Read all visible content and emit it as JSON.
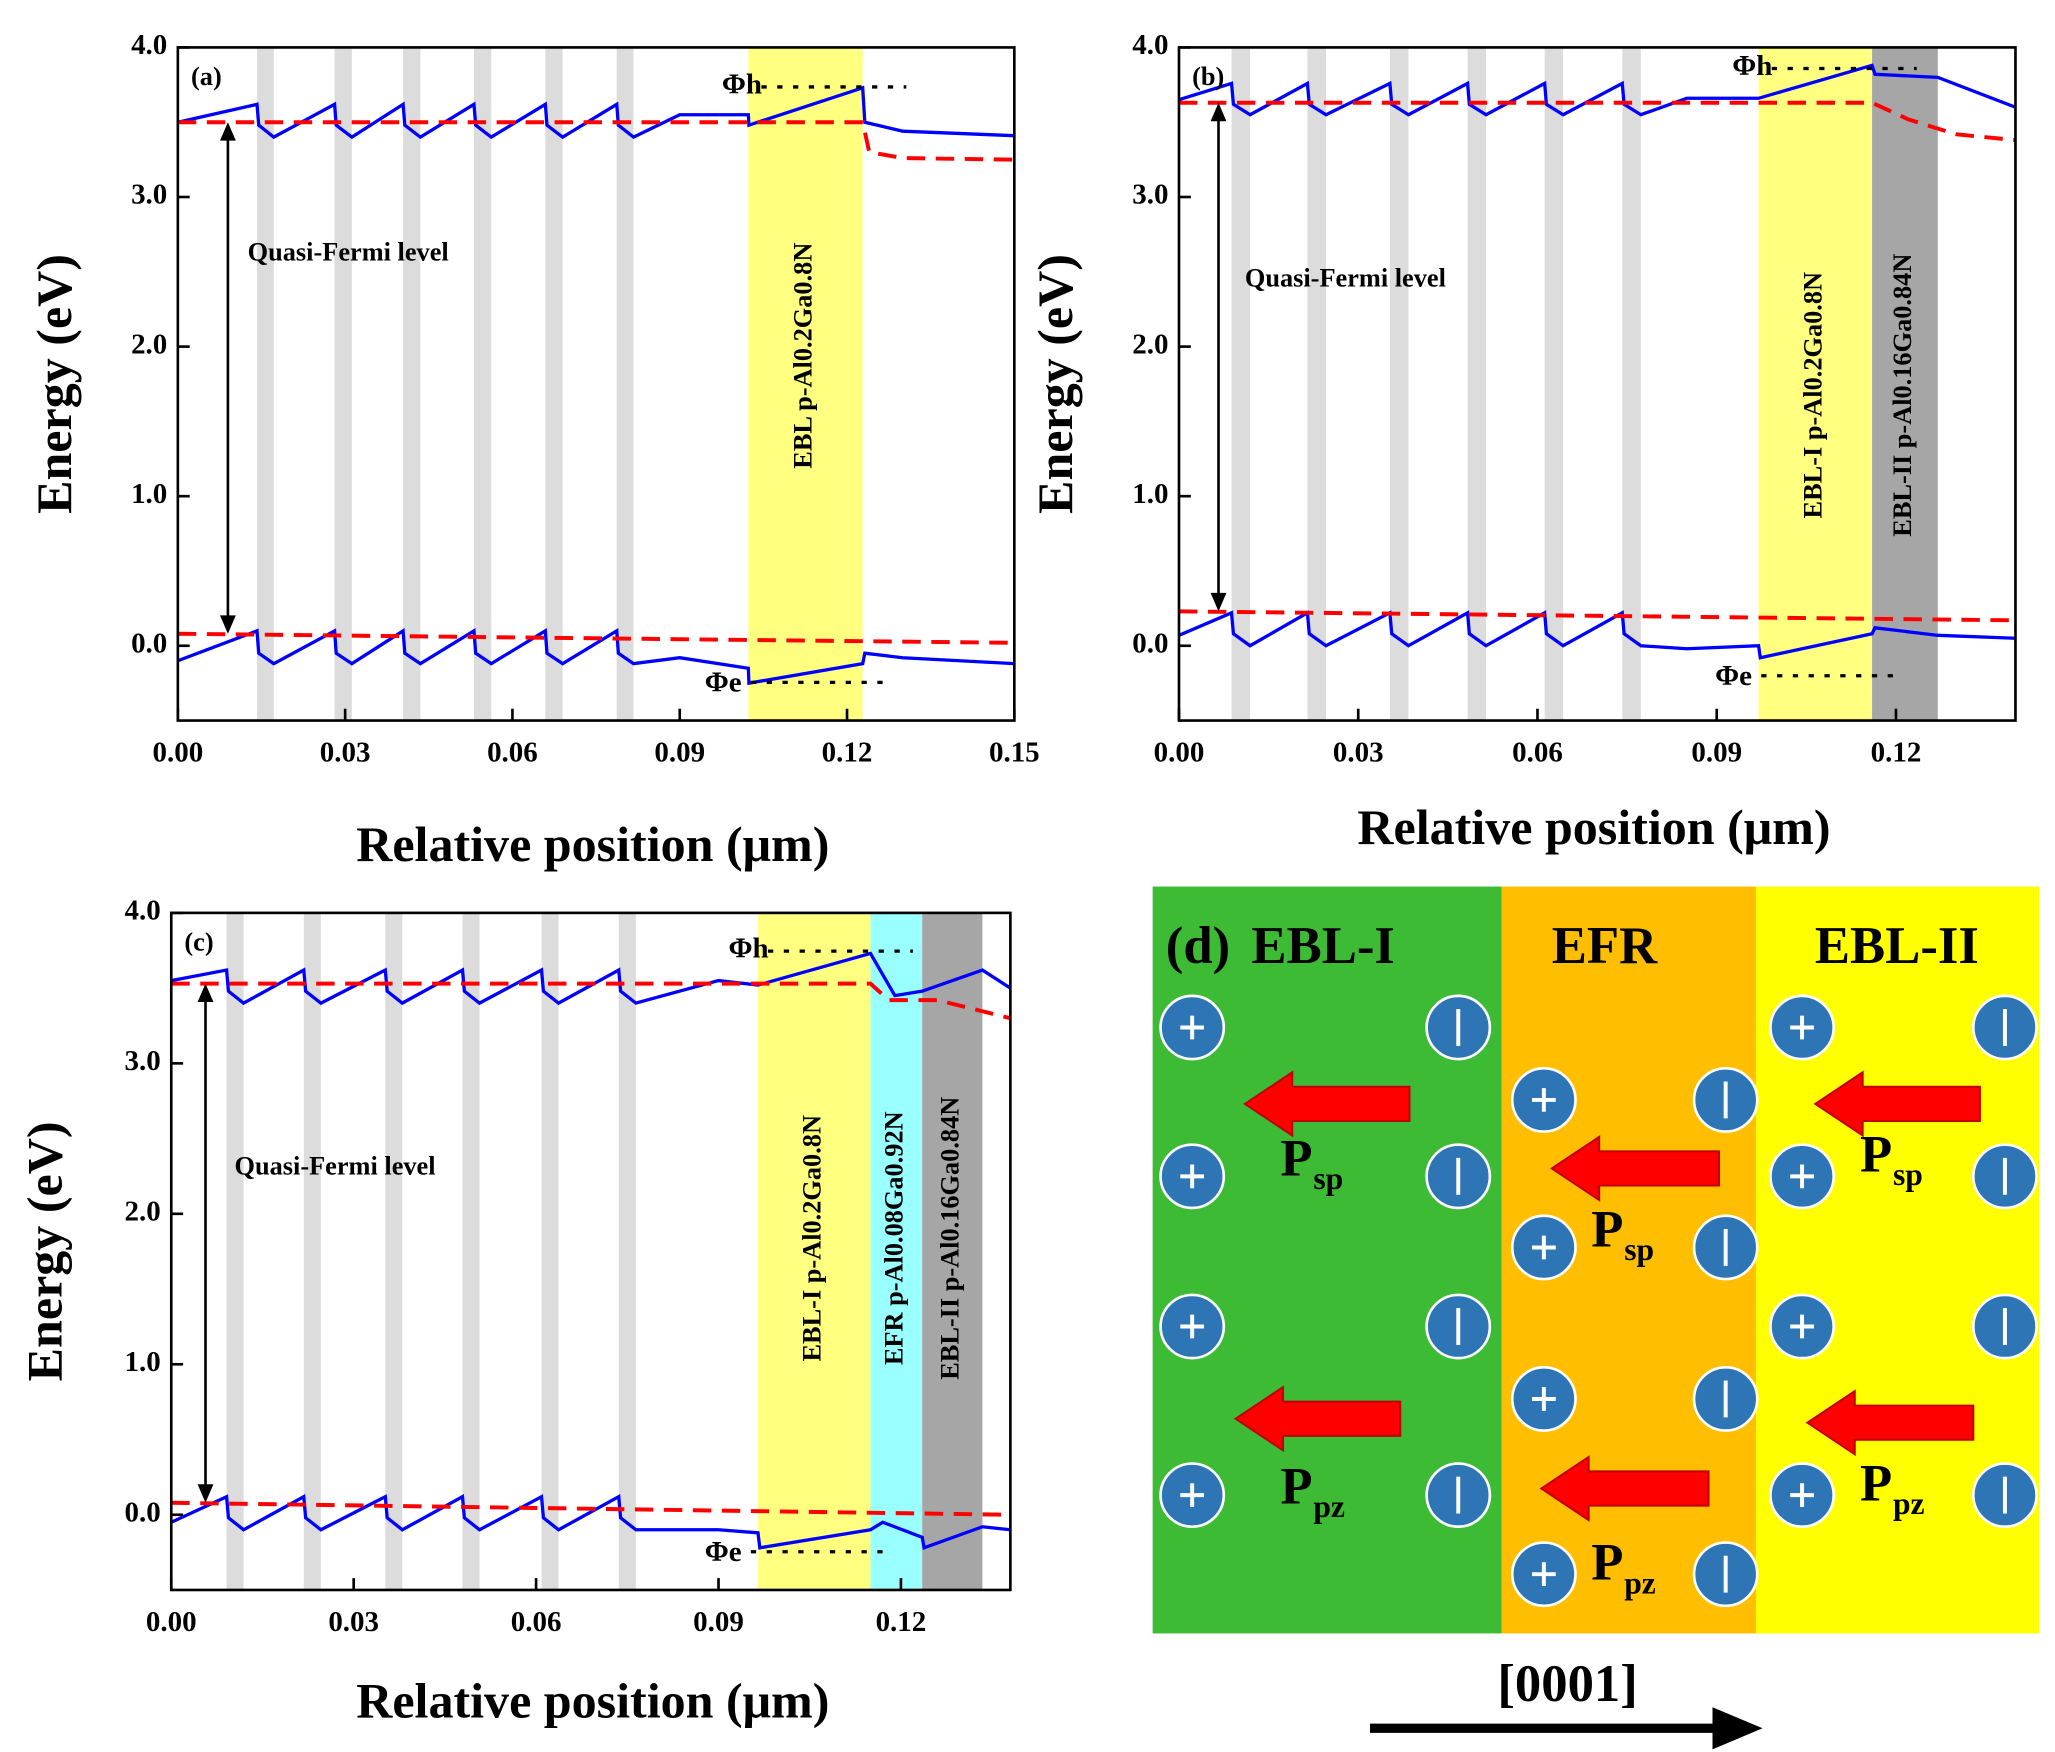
{
  "chart_data": [
    {
      "type": "line",
      "panel": "(a)",
      "ylabel": "Energy (eV)",
      "xlabel": "Relative position (μm)",
      "xlim": [
        0,
        0.15
      ],
      "ylim": [
        -0.5,
        4.0
      ],
      "xticks": [
        {
          "value": 0,
          "label": "0.00"
        },
        {
          "value": 0.03,
          "label": "0.03"
        },
        {
          "value": 0.06,
          "label": "0.06"
        },
        {
          "value": 0.09,
          "label": "0.09"
        },
        {
          "value": 0.12,
          "label": "0.12"
        },
        {
          "value": 0.15,
          "label": "0.15"
        }
      ],
      "yticks": [
        {
          "value": 0,
          "label": "0.0"
        },
        {
          "value": 1,
          "label": "1.0"
        },
        {
          "value": 2,
          "label": "2.0"
        },
        {
          "value": 3,
          "label": "3.0"
        },
        {
          "value": 4,
          "label": "4.0"
        }
      ],
      "stripe_color": "#dcdcdc",
      "stripes": [
        [
          0.0142,
          0.0172
        ],
        [
          0.0281,
          0.0312
        ],
        [
          0.0404,
          0.0435
        ],
        [
          0.0531,
          0.0562
        ],
        [
          0.0659,
          0.069
        ],
        [
          0.0787,
          0.0817
        ]
      ],
      "regions": [
        {
          "xlim": [
            0.1023,
            0.1228
          ],
          "color": "#ffff80",
          "label": "EBL p-Al0.2Ga0.8N"
        }
      ],
      "annotations": [
        "Quasi-Fermi level",
        "Φh",
        "Φe"
      ],
      "series": [
        {
          "color": "#0000ff",
          "style": "solid",
          "x": [
            0,
            0.0142,
            0.0145,
            0.0172,
            0.0281,
            0.0284,
            0.0312,
            0.0404,
            0.0407,
            0.0435,
            0.0531,
            0.0534,
            0.0562,
            0.0659,
            0.0662,
            0.069,
            0.0787,
            0.079,
            0.0817,
            0.09,
            0.1023,
            0.1024,
            0.1228,
            0.1232,
            0.13,
            0.15
          ],
          "values": [
            3.5,
            3.62,
            3.48,
            3.4,
            3.62,
            3.48,
            3.4,
            3.62,
            3.48,
            3.4,
            3.62,
            3.48,
            3.4,
            3.62,
            3.48,
            3.4,
            3.62,
            3.48,
            3.4,
            3.55,
            3.55,
            3.48,
            3.73,
            3.5,
            3.44,
            3.41
          ]
        },
        {
          "color": "#0000ff",
          "style": "solid",
          "x": [
            0,
            0.0142,
            0.0145,
            0.0172,
            0.0281,
            0.0284,
            0.0312,
            0.0404,
            0.0407,
            0.0435,
            0.0531,
            0.0534,
            0.0562,
            0.0659,
            0.0662,
            0.069,
            0.0787,
            0.079,
            0.0817,
            0.09,
            0.1023,
            0.1024,
            0.1228,
            0.1232,
            0.13,
            0.15
          ],
          "values": [
            -0.1,
            0.1,
            -0.05,
            -0.12,
            0.1,
            -0.05,
            -0.12,
            0.1,
            -0.05,
            -0.12,
            0.1,
            -0.05,
            -0.12,
            0.1,
            -0.05,
            -0.12,
            0.1,
            -0.05,
            -0.12,
            -0.08,
            -0.15,
            -0.25,
            -0.12,
            -0.05,
            -0.08,
            -0.12
          ]
        },
        {
          "color": "#ff0000",
          "style": "dashed",
          "x": [
            0,
            0.09,
            0.1228,
            0.124,
            0.13,
            0.15
          ],
          "values": [
            3.5,
            3.5,
            3.5,
            3.3,
            3.26,
            3.25
          ]
        },
        {
          "color": "#ff0000",
          "style": "dashed",
          "x": [
            0,
            0.15
          ],
          "values": [
            0.08,
            0.02
          ]
        }
      ]
    },
    {
      "type": "line",
      "panel": "(b)",
      "ylabel": "Energy (eV)",
      "xlabel": "Relative position (μm)",
      "xlim": [
        0,
        0.14
      ],
      "ylim": [
        -0.5,
        4.0
      ],
      "xticks": [
        {
          "value": 0,
          "label": "0.00"
        },
        {
          "value": 0.03,
          "label": "0.03"
        },
        {
          "value": 0.06,
          "label": "0.06"
        },
        {
          "value": 0.09,
          "label": "0.09"
        },
        {
          "value": 0.12,
          "label": "0.12"
        }
      ],
      "yticks": [
        {
          "value": 0,
          "label": "0.0"
        },
        {
          "value": 1,
          "label": "1.0"
        },
        {
          "value": 2,
          "label": "2.0"
        },
        {
          "value": 3,
          "label": "3.0"
        },
        {
          "value": 4,
          "label": "4.0"
        }
      ],
      "stripe_color": "#dcdcdc",
      "stripes": [
        [
          0.0088,
          0.0119
        ],
        [
          0.0215,
          0.0246
        ],
        [
          0.0353,
          0.0384
        ],
        [
          0.0483,
          0.0514
        ],
        [
          0.0612,
          0.0643
        ],
        [
          0.0742,
          0.0773
        ]
      ],
      "regions": [
        {
          "xlim": [
            0.097,
            0.116
          ],
          "color": "#ffff80",
          "label": "EBL-I p-Al0.2Ga0.8N"
        },
        {
          "xlim": [
            0.116,
            0.127
          ],
          "color": "#a6a6a6",
          "label": "EBL-II p-Al0.16Ga0.84N"
        }
      ],
      "annotations": [
        "Quasi-Fermi level",
        "Φh",
        "Φe"
      ],
      "series": [
        {
          "color": "#0000ff",
          "style": "solid",
          "x": [
            0,
            0.0088,
            0.0091,
            0.0119,
            0.0215,
            0.0218,
            0.0246,
            0.0353,
            0.0356,
            0.0384,
            0.0483,
            0.0486,
            0.0514,
            0.0612,
            0.0615,
            0.0643,
            0.0742,
            0.0745,
            0.0773,
            0.085,
            0.097,
            0.116,
            0.1165,
            0.127,
            0.14
          ],
          "values": [
            3.65,
            3.76,
            3.62,
            3.55,
            3.76,
            3.62,
            3.55,
            3.76,
            3.62,
            3.55,
            3.76,
            3.62,
            3.55,
            3.76,
            3.62,
            3.55,
            3.76,
            3.62,
            3.55,
            3.66,
            3.66,
            3.88,
            3.82,
            3.8,
            3.6
          ]
        },
        {
          "color": "#0000ff",
          "style": "solid",
          "x": [
            0,
            0.0088,
            0.0091,
            0.0119,
            0.0215,
            0.0218,
            0.0246,
            0.0353,
            0.0356,
            0.0384,
            0.0483,
            0.0486,
            0.0514,
            0.0612,
            0.0615,
            0.0643,
            0.0742,
            0.0745,
            0.0773,
            0.085,
            0.097,
            0.0973,
            0.116,
            0.1165,
            0.127,
            0.14
          ],
          "values": [
            0.07,
            0.22,
            0.08,
            0.0,
            0.22,
            0.08,
            0.0,
            0.22,
            0.08,
            0.0,
            0.22,
            0.08,
            0.0,
            0.22,
            0.08,
            0.0,
            0.22,
            0.08,
            0.0,
            -0.02,
            0.0,
            -0.08,
            0.08,
            0.12,
            0.07,
            0.05
          ]
        },
        {
          "color": "#ff0000",
          "style": "dashed",
          "x": [
            0,
            0.116,
            0.122,
            0.13,
            0.14
          ],
          "values": [
            3.63,
            3.63,
            3.52,
            3.42,
            3.38
          ]
        },
        {
          "color": "#ff0000",
          "style": "dashed",
          "x": [
            0,
            0.14
          ],
          "values": [
            0.23,
            0.17
          ]
        }
      ]
    },
    {
      "type": "line",
      "panel": "(c)",
      "ylabel": "Energy (eV)",
      "xlabel": "Relative position (μm)",
      "xlim": [
        0,
        0.138
      ],
      "ylim": [
        -0.5,
        4.0
      ],
      "xticks": [
        {
          "value": 0,
          "label": "0.00"
        },
        {
          "value": 0.03,
          "label": "0.03"
        },
        {
          "value": 0.06,
          "label": "0.06"
        },
        {
          "value": 0.09,
          "label": "0.09"
        },
        {
          "value": 0.12,
          "label": "0.12"
        }
      ],
      "yticks": [
        {
          "value": 0,
          "label": "0.0"
        },
        {
          "value": 1,
          "label": "1.0"
        },
        {
          "value": 2,
          "label": "2.0"
        },
        {
          "value": 3,
          "label": "3.0"
        },
        {
          "value": 4,
          "label": "4.0"
        }
      ],
      "stripe_color": "#dcdcdc",
      "stripes": [
        [
          0.0091,
          0.0119
        ],
        [
          0.0218,
          0.0246
        ],
        [
          0.0352,
          0.038
        ],
        [
          0.0479,
          0.0507
        ],
        [
          0.0609,
          0.0637
        ],
        [
          0.0736,
          0.0764
        ]
      ],
      "regions": [
        {
          "xlim": [
            0.0965,
            0.115
          ],
          "color": "#ffff80",
          "label": "EBL-I p-Al0.2Ga0.8N"
        },
        {
          "xlim": [
            0.115,
            0.1235
          ],
          "color": "#99ffff",
          "label": "EFR p-Al0.08Ga0.92N"
        },
        {
          "xlim": [
            0.1235,
            0.1334
          ],
          "color": "#a6a6a6",
          "label": "EBL-II p-Al0.16Ga0.84N"
        }
      ],
      "annotations": [
        "Quasi-Fermi level",
        "Φh",
        "Φe"
      ],
      "series": [
        {
          "color": "#0000ff",
          "style": "solid",
          "x": [
            0,
            0.0091,
            0.0094,
            0.0119,
            0.0218,
            0.0221,
            0.0246,
            0.0352,
            0.0355,
            0.038,
            0.0479,
            0.0482,
            0.0507,
            0.0609,
            0.0612,
            0.0637,
            0.0736,
            0.0739,
            0.0764,
            0.09,
            0.0965,
            0.115,
            0.119,
            0.1235,
            0.1334,
            0.138
          ],
          "values": [
            3.55,
            3.62,
            3.48,
            3.4,
            3.62,
            3.48,
            3.4,
            3.62,
            3.48,
            3.4,
            3.62,
            3.48,
            3.4,
            3.62,
            3.48,
            3.4,
            3.62,
            3.48,
            3.4,
            3.55,
            3.52,
            3.73,
            3.45,
            3.48,
            3.62,
            3.5
          ]
        },
        {
          "color": "#0000ff",
          "style": "solid",
          "x": [
            0,
            0.0091,
            0.0094,
            0.0119,
            0.0218,
            0.0221,
            0.0246,
            0.0352,
            0.0355,
            0.038,
            0.0479,
            0.0482,
            0.0507,
            0.0609,
            0.0612,
            0.0637,
            0.0736,
            0.0739,
            0.0764,
            0.09,
            0.0965,
            0.0968,
            0.115,
            0.117,
            0.1235,
            0.1238,
            0.1334,
            0.138
          ],
          "values": [
            -0.05,
            0.12,
            -0.02,
            -0.1,
            0.12,
            -0.02,
            -0.1,
            0.12,
            -0.02,
            -0.1,
            0.12,
            -0.02,
            -0.1,
            0.12,
            -0.02,
            -0.1,
            0.12,
            -0.02,
            -0.1,
            -0.1,
            -0.12,
            -0.22,
            -0.1,
            -0.05,
            -0.15,
            -0.22,
            -0.08,
            -0.1
          ]
        },
        {
          "color": "#ff0000",
          "style": "dashed",
          "x": [
            0,
            0.115,
            0.118,
            0.126,
            0.133,
            0.138
          ],
          "values": [
            3.53,
            3.53,
            3.42,
            3.42,
            3.35,
            3.3
          ]
        },
        {
          "color": "#ff0000",
          "style": "dashed",
          "x": [
            0,
            0.138
          ],
          "values": [
            0.08,
            0.0
          ]
        }
      ]
    }
  ],
  "diagram": {
    "label": "(d)",
    "columns": [
      {
        "name": "EBL-I",
        "color": "#3dbb35"
      },
      {
        "name": "EFR",
        "color": "#ffbf00"
      },
      {
        "name": "EBL-II",
        "color": "#ffff00"
      }
    ],
    "polarization": [
      {
        "main": "P",
        "sub": "sp"
      },
      {
        "main": "P",
        "sub": "pz"
      }
    ],
    "direction": "[0001]"
  }
}
